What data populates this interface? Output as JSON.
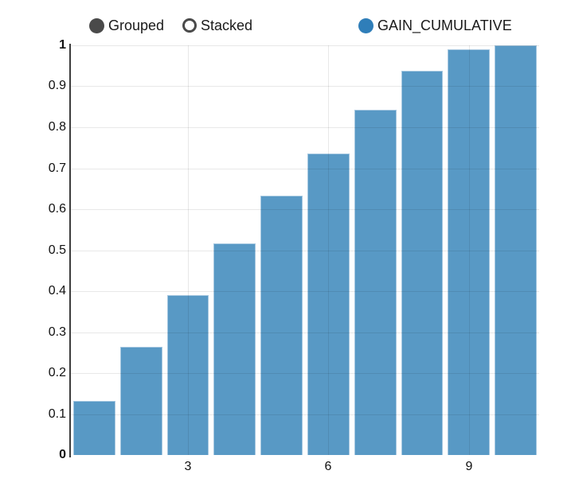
{
  "controls": {
    "grouped_label": "Grouped",
    "stacked_label": "Stacked",
    "selected": "Grouped"
  },
  "legend": {
    "series_label": "GAIN_CUMULATIVE",
    "dot_color": "#2f7eb9"
  },
  "colors": {
    "bar_fill": "#5899c5",
    "bar_border": "#a5c7e0",
    "axis_line": "#3c3c3c",
    "gridline": "rgba(0,0,0,0.09)",
    "radio_circle": "#4a4a4a",
    "label_text": "#111111"
  },
  "chart_data": {
    "type": "bar",
    "series_name": "GAIN_CUMULATIVE",
    "categories": [
      1,
      2,
      3,
      4,
      5,
      6,
      7,
      8,
      9,
      10
    ],
    "values": [
      0.133,
      0.265,
      0.39,
      0.516,
      0.633,
      0.736,
      0.842,
      0.937,
      0.99,
      1.0
    ],
    "title": "",
    "xlabel": "",
    "ylabel": "",
    "ylim": [
      0,
      1
    ],
    "y_ticks": [
      0,
      0.1,
      0.2,
      0.3,
      0.4,
      0.5,
      0.6,
      0.7,
      0.8,
      0.9,
      1
    ],
    "y_tick_labels": [
      "0",
      "0.1",
      "0.2",
      "0.3",
      "0.4",
      "0.5",
      "0.6",
      "0.7",
      "0.8",
      "0.9",
      "1"
    ],
    "x_ticks_shown": [
      3,
      6,
      9
    ],
    "x_tick_labels_shown": [
      "3",
      "6",
      "9"
    ],
    "grid": true,
    "legend_position": "top-right"
  }
}
